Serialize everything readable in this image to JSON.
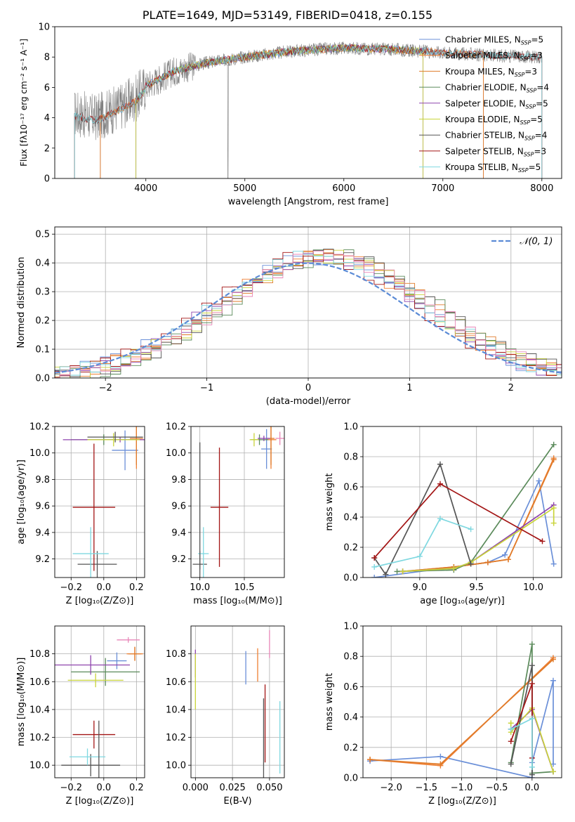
{
  "figure_title": "PLATE=1649, MJD=53149, FIBERID=0418, z=0.155",
  "colors": {
    "chabrier_miles": "#6a8fd8",
    "salpeter_miles": "#ef7f33",
    "kroupa_miles": "#e07b2a",
    "chabrier_elodie": "#5a8a5a",
    "salpeter_elodie": "#8e44ad",
    "kroupa_elodie": "#c9d43a",
    "chabrier_stelib": "#555555",
    "salpeter_stelib": "#a31515",
    "kroupa_stelib": "#7fd8e0",
    "pink": "#e887b8",
    "gaussian": "#5b8bd6"
  },
  "chart_data": [
    {
      "id": "spectrum",
      "type": "line",
      "xlabel": "wavelength [Angstrom, rest frame]",
      "ylabel": "Flux [fλ10⁻¹⁷ erg cm⁻² s⁻¹ A⁻¹]",
      "xlim": [
        3080,
        8200
      ],
      "ylim": [
        0,
        10
      ],
      "xticks": [
        4000,
        5000,
        6000,
        7000,
        8000
      ],
      "yticks": [
        0,
        2,
        4,
        6,
        8,
        10
      ],
      "legend_loc": "right",
      "legend": [
        "Chabrier MILES, N_SSP=5",
        "Salpeter MILES, N_SSP=3",
        "Kroupa MILES, N_SSP=3",
        "Chabrier ELODIE, N_SSP=4",
        "Salpeter ELODIE, N_SSP=5",
        "Kroupa ELODIE, N_SSP=5",
        "Chabrier STELIB, N_SSP=4",
        "Salpeter STELIB, N_SSP=3",
        "Kroupa STELIB, N_SSP=5"
      ],
      "continuum_points": [
        [
          3280,
          4.3
        ],
        [
          3500,
          4.0
        ],
        [
          3700,
          4.6
        ],
        [
          3900,
          5.3
        ],
        [
          4000,
          6.1
        ],
        [
          4300,
          7.1
        ],
        [
          4600,
          7.6
        ],
        [
          5000,
          8.0
        ],
        [
          5500,
          8.4
        ],
        [
          6000,
          8.6
        ],
        [
          6500,
          8.5
        ],
        [
          7000,
          8.3
        ],
        [
          7500,
          8.1
        ],
        [
          8000,
          8.0
        ]
      ]
    },
    {
      "id": "residuals",
      "type": "line",
      "xlabel": "(data-model)/error",
      "ylabel": "Normed distribution",
      "xlim": [
        -2.5,
        2.5
      ],
      "ylim": [
        0,
        0.525
      ],
      "xticks": [
        -2,
        -1,
        0,
        1,
        2
      ],
      "yticks": [
        0.0,
        0.1,
        0.2,
        0.3,
        0.4,
        0.5
      ],
      "grid": true,
      "legend_loc": "upper right",
      "legend": [
        "𝒩(0, 1)"
      ],
      "gaussian": {
        "mean": 0,
        "sigma": 1
      }
    },
    {
      "id": "age_vs_Z",
      "type": "scatter",
      "xlabel": "Z [log₁₀(Z/Z⊙)]",
      "ylabel": "age  [log₁₀(age/yr)]",
      "xlim": [
        -0.3,
        0.25
      ],
      "ylim": [
        9.06,
        10.2
      ],
      "xticks": [
        -0.2,
        0.0,
        0.2
      ],
      "yticks": [
        9.2,
        9.4,
        9.6,
        9.8,
        10.0,
        10.2
      ],
      "grid": true,
      "points": [
        {
          "x": 0.13,
          "y": 10.02,
          "xerr": 0.08,
          "yerr": 0.15,
          "c": "chabrier_miles"
        },
        {
          "x": 0.2,
          "y": 10.1,
          "xerr": 0.05,
          "yerr": 0.22,
          "c": "salpeter_miles"
        },
        {
          "x": 0.2,
          "y": 10.11,
          "xerr": 0.04,
          "yerr": 0.2,
          "c": "kroupa_miles"
        },
        {
          "x": 0.0,
          "y": 10.1,
          "xerr": 0.2,
          "yerr": 0.04,
          "c": "chabrier_elodie"
        },
        {
          "x": 0.1,
          "y": 10.1,
          "xerr": 0.35,
          "yerr": 0.02,
          "c": "salpeter_elodie"
        },
        {
          "x": 0.06,
          "y": 10.1,
          "xerr": 0.16,
          "yerr": 0.05,
          "c": "kroupa_elodie"
        },
        {
          "x": -0.04,
          "y": 9.16,
          "xerr": 0.12,
          "yerr": 0.1,
          "c": "chabrier_stelib"
        },
        {
          "x": -0.06,
          "y": 9.59,
          "xerr": 0.13,
          "yerr": 0.48,
          "c": "salpeter_stelib"
        },
        {
          "x": -0.08,
          "y": 9.24,
          "xerr": 0.11,
          "yerr": 0.2,
          "c": "kroupa_stelib"
        },
        {
          "x": 0.07,
          "y": 10.12,
          "xerr": 0.17,
          "yerr": 0.04,
          "c": "chabrier_stelib"
        }
      ]
    },
    {
      "id": "age_vs_mass",
      "type": "scatter",
      "xlabel": "mass [log₁₀(M/M⊙)]",
      "ylabel": "",
      "xlim": [
        9.9,
        10.95
      ],
      "ylim": [
        9.06,
        10.2
      ],
      "xticks": [
        10.0,
        10.5
      ],
      "yticks": [
        9.2,
        9.4,
        9.6,
        9.8,
        10.0,
        10.2
      ],
      "grid": true,
      "points": [
        {
          "x": 10.75,
          "y": 10.03,
          "xerr": 0.06,
          "yerr": 0.15,
          "c": "chabrier_miles"
        },
        {
          "x": 10.8,
          "y": 10.1,
          "xerr": 0.06,
          "yerr": 0.22,
          "c": "salpeter_miles"
        },
        {
          "x": 10.8,
          "y": 10.11,
          "xerr": 0.04,
          "yerr": 0.2,
          "c": "kroupa_miles"
        },
        {
          "x": 10.67,
          "y": 10.1,
          "xerr": 0.1,
          "yerr": 0.04,
          "c": "chabrier_elodie"
        },
        {
          "x": 10.72,
          "y": 10.11,
          "xerr": 0.07,
          "yerr": 0.02,
          "c": "salpeter_elodie"
        },
        {
          "x": 10.61,
          "y": 10.1,
          "xerr": 0.05,
          "yerr": 0.05,
          "c": "kroupa_elodie"
        },
        {
          "x": 10.0,
          "y": 9.16,
          "xerr": 0.08,
          "yerr": 0.1,
          "c": "chabrier_stelib"
        },
        {
          "x": 10.22,
          "y": 9.59,
          "xerr": 0.1,
          "yerr": 0.45,
          "c": "salpeter_stelib"
        },
        {
          "x": 10.04,
          "y": 9.24,
          "xerr": 0.06,
          "yerr": 0.2,
          "c": "kroupa_stelib"
        },
        {
          "x": 10.9,
          "y": 10.11,
          "xerr": 0.05,
          "yerr": 0.05,
          "c": "pink"
        },
        {
          "x": 10.0,
          "y": 9.6,
          "xerr": 0.0,
          "yerr": 0.48,
          "c": "chabrier_stelib"
        }
      ]
    },
    {
      "id": "weight_vs_age",
      "type": "line",
      "xlabel": "age  [log₁₀(age/yr)]",
      "ylabel": "mass weight",
      "xlim": [
        8.5,
        10.25
      ],
      "ylim": [
        0,
        1
      ],
      "xticks": [
        9.0,
        9.5,
        10.0
      ],
      "yticks": [
        0.0,
        0.2,
        0.4,
        0.6,
        0.8,
        1.0
      ],
      "grid": true,
      "series": [
        {
          "c": "chabrier_miles",
          "x": [
            8.6,
            9.3,
            9.6,
            9.75,
            10.05,
            10.18
          ],
          "y": [
            0.0,
            0.07,
            0.1,
            0.15,
            0.64,
            0.09
          ]
        },
        {
          "c": "salpeter_miles",
          "x": [
            8.85,
            9.3,
            9.6,
            9.78,
            10.18
          ],
          "y": [
            0.04,
            0.07,
            0.1,
            0.12,
            0.79
          ]
        },
        {
          "c": "kroupa_miles",
          "x": [
            8.85,
            9.3,
            9.6,
            9.78,
            10.18
          ],
          "y": [
            0.04,
            0.07,
            0.1,
            0.12,
            0.78
          ]
        },
        {
          "c": "chabrier_elodie",
          "x": [
            8.8,
            9.3,
            9.45,
            10.18
          ],
          "y": [
            0.04,
            0.05,
            0.1,
            0.88
          ]
        },
        {
          "c": "salpeter_elodie",
          "x": [
            8.85,
            9.3,
            9.45,
            10.18
          ],
          "y": [
            0.04,
            0.06,
            0.1,
            0.48
          ]
        },
        {
          "c": "kroupa_elodie",
          "x": [
            8.85,
            9.3,
            9.45,
            10.18,
            10.18
          ],
          "y": [
            0.04,
            0.06,
            0.1,
            0.46,
            0.36
          ]
        },
        {
          "c": "chabrier_stelib",
          "x": [
            8.6,
            8.7,
            9.18,
            9.45
          ],
          "y": [
            0.13,
            0.02,
            0.75,
            0.09
          ]
        },
        {
          "c": "salpeter_stelib",
          "x": [
            8.6,
            9.18,
            10.08
          ],
          "y": [
            0.13,
            0.62,
            0.24
          ]
        },
        {
          "c": "kroupa_stelib",
          "x": [
            8.6,
            9.0,
            9.18,
            9.45
          ],
          "y": [
            0.07,
            0.14,
            0.39,
            0.32
          ]
        }
      ]
    },
    {
      "id": "mass_vs_Z",
      "type": "scatter",
      "xlabel": "Z [log₁₀(Z/Z⊙)]",
      "ylabel": "mass [log₁₀(M/M⊙)]",
      "xlim": [
        -0.3,
        0.25
      ],
      "ylim": [
        9.91,
        11.0
      ],
      "xticks": [
        -0.2,
        0.0,
        0.2
      ],
      "yticks": [
        10.0,
        10.2,
        10.4,
        10.6,
        10.8
      ],
      "grid": true,
      "points": [
        {
          "x": 0.08,
          "y": 10.75,
          "xerr": 0.06,
          "yerr": 0.06,
          "c": "chabrier_miles"
        },
        {
          "x": 0.19,
          "y": 10.8,
          "xerr": 0.05,
          "yerr": 0.05,
          "c": "salpeter_miles"
        },
        {
          "x": 0.19,
          "y": 10.8,
          "xerr": 0.04,
          "yerr": 0.05,
          "c": "kroupa_miles"
        },
        {
          "x": 0.01,
          "y": 10.67,
          "xerr": 0.21,
          "yerr": 0.1,
          "c": "chabrier_elodie"
        },
        {
          "x": -0.08,
          "y": 10.72,
          "xerr": 0.24,
          "yerr": 0.07,
          "c": "salpeter_elodie"
        },
        {
          "x": -0.05,
          "y": 10.61,
          "xerr": 0.17,
          "yerr": 0.05,
          "c": "kroupa_elodie"
        },
        {
          "x": -0.08,
          "y": 10.0,
          "xerr": 0.18,
          "yerr": 0.08,
          "c": "chabrier_stelib"
        },
        {
          "x": -0.06,
          "y": 10.22,
          "xerr": 0.13,
          "yerr": 0.1,
          "c": "salpeter_stelib"
        },
        {
          "x": -0.1,
          "y": 10.06,
          "xerr": 0.11,
          "yerr": 0.06,
          "c": "kroupa_stelib"
        },
        {
          "x": 0.15,
          "y": 10.9,
          "xerr": 0.07,
          "yerr": 0.02,
          "c": "pink"
        },
        {
          "x": -0.03,
          "y": 10.04,
          "xerr": 0.0,
          "yerr": 0.28,
          "c": "chabrier_stelib"
        }
      ]
    },
    {
      "id": "mass_vs_ebv",
      "type": "scatter",
      "xlabel": "E(B-V)",
      "ylabel": "",
      "xlim": [
        -0.003,
        0.06
      ],
      "ylim": [
        9.91,
        11.0
      ],
      "xticks": [
        0.0,
        0.025,
        0.05
      ],
      "yticks": [
        10.0,
        10.2,
        10.4,
        10.6,
        10.8
      ],
      "grid": true,
      "points": [
        {
          "x": 0.0,
          "y": 10.73,
          "xerr": 0,
          "yerr": 0.1,
          "c": "salpeter_elodie"
        },
        {
          "x": 0.0,
          "y": 10.6,
          "xerr": 0,
          "yerr": 0.2,
          "c": "kroupa_elodie"
        },
        {
          "x": 0.034,
          "y": 10.7,
          "xerr": 0,
          "yerr": 0.12,
          "c": "chabrier_miles"
        },
        {
          "x": 0.042,
          "y": 10.72,
          "xerr": 0,
          "yerr": 0.12,
          "c": "salpeter_miles"
        },
        {
          "x": 0.05,
          "y": 10.87,
          "xerr": 0,
          "yerr": 0.1,
          "c": "pink"
        },
        {
          "x": 0.047,
          "y": 10.3,
          "xerr": 0,
          "yerr": 0.28,
          "c": "salpeter_stelib"
        },
        {
          "x": 0.046,
          "y": 10.08,
          "xerr": 0,
          "yerr": 0.4,
          "c": "chabrier_stelib"
        },
        {
          "x": 0.057,
          "y": 10.2,
          "xerr": 0,
          "yerr": 0.26,
          "c": "kroupa_stelib"
        }
      ]
    },
    {
      "id": "weight_vs_Z",
      "type": "line",
      "xlabel": "Z [log₁₀(Z/Z⊙)]",
      "ylabel": "mass weight",
      "xlim": [
        -2.4,
        0.42
      ],
      "ylim": [
        0,
        1
      ],
      "xticks": [
        -2.0,
        -1.5,
        -1.0,
        -0.5,
        0.0
      ],
      "yticks": [
        0.0,
        0.2,
        0.4,
        0.6,
        0.8,
        1.0
      ],
      "grid": true,
      "series": [
        {
          "c": "chabrier_miles",
          "x": [
            -2.3,
            -1.3,
            0.0,
            0.0,
            0.3,
            0.3
          ],
          "y": [
            0.11,
            0.14,
            0.0,
            0.1,
            0.64,
            0.09
          ]
        },
        {
          "c": "salpeter_miles",
          "x": [
            -2.3,
            -1.3,
            0.3
          ],
          "y": [
            0.12,
            0.08,
            0.79
          ]
        },
        {
          "c": "kroupa_miles",
          "x": [
            -2.3,
            -1.3,
            0.3
          ],
          "y": [
            0.12,
            0.09,
            0.78
          ]
        },
        {
          "c": "chabrier_elodie",
          "x": [
            -0.3,
            0.0,
            0.0,
            0.3
          ],
          "y": [
            0.1,
            0.88,
            0.03,
            0.04
          ]
        },
        {
          "c": "salpeter_elodie",
          "x": [
            -0.3,
            0.0,
            0.3
          ],
          "y": [
            0.32,
            0.45,
            0.04
          ]
        },
        {
          "c": "kroupa_elodie",
          "x": [
            -0.3,
            -0.3,
            0.0,
            0.3
          ],
          "y": [
            0.36,
            0.3,
            0.46,
            0.04
          ]
        },
        {
          "c": "chabrier_stelib",
          "x": [
            -0.3,
            0.0,
            0.0
          ],
          "y": [
            0.09,
            0.74,
            0.02
          ]
        },
        {
          "c": "salpeter_stelib",
          "x": [
            -0.3,
            0.0,
            0.0
          ],
          "y": [
            0.24,
            0.62,
            0.13
          ]
        },
        {
          "c": "kroupa_stelib",
          "x": [
            -0.3,
            0.0,
            0.0
          ],
          "y": [
            0.32,
            0.39,
            0.07
          ]
        }
      ]
    }
  ]
}
